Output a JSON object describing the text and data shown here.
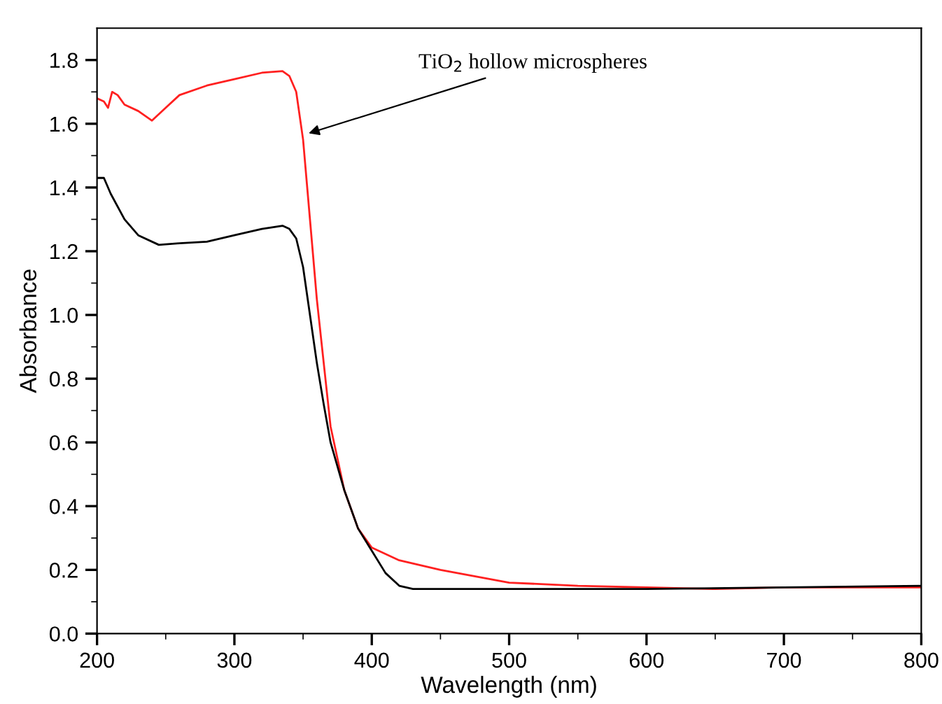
{
  "chart_data": {
    "type": "line",
    "xlabel": "Wavelength (nm)",
    "ylabel": "Absorbance",
    "xlim": [
      200,
      800
    ],
    "ylim": [
      0,
      1.9
    ],
    "xticks": [
      200,
      300,
      400,
      500,
      600,
      700,
      800
    ],
    "yticks": [
      {
        "value": 0,
        "label": "0.0"
      },
      {
        "value": 0.2,
        "label": "0.2"
      },
      {
        "value": 0.4,
        "label": "0.4"
      },
      {
        "value": 0.6,
        "label": "0.6"
      },
      {
        "value": 0.8,
        "label": "0.8"
      },
      {
        "value": 1,
        "label": "1.0"
      },
      {
        "value": 1.2,
        "label": "1.2"
      },
      {
        "value": 1.4,
        "label": "1.4"
      },
      {
        "value": 1.6,
        "label": "1.6"
      },
      {
        "value": 1.8,
        "label": "1.8"
      }
    ],
    "grid": false,
    "legend": false,
    "marker": "none",
    "line_style": "solid",
    "series": [
      {
        "color": "#ff2020",
        "x": [
          200,
          205,
          208,
          211,
          215,
          220,
          230,
          240,
          250,
          260,
          280,
          300,
          320,
          335,
          340,
          345,
          350,
          355,
          360,
          365,
          370,
          380,
          390,
          400,
          420,
          450,
          500,
          550,
          600,
          650,
          700,
          800
        ],
        "values": [
          1.68,
          1.67,
          1.65,
          1.7,
          1.69,
          1.66,
          1.64,
          1.61,
          1.65,
          1.69,
          1.72,
          1.74,
          1.76,
          1.765,
          1.75,
          1.7,
          1.55,
          1.3,
          1.05,
          0.85,
          0.65,
          0.45,
          0.33,
          0.27,
          0.23,
          0.2,
          0.16,
          0.15,
          0.145,
          0.14,
          0.145,
          0.145
        ]
      },
      {
        "color": "#000000",
        "x": [
          200,
          205,
          210,
          220,
          230,
          245,
          260,
          280,
          300,
          320,
          335,
          340,
          345,
          350,
          355,
          360,
          365,
          370,
          380,
          390,
          400,
          410,
          420,
          430,
          500,
          600,
          700,
          800
        ],
        "values": [
          1.43,
          1.43,
          1.38,
          1.3,
          1.25,
          1.22,
          1.225,
          1.23,
          1.25,
          1.27,
          1.28,
          1.27,
          1.24,
          1.15,
          1.0,
          0.85,
          0.72,
          0.6,
          0.45,
          0.33,
          0.26,
          0.19,
          0.15,
          0.14,
          0.14,
          0.14,
          0.145,
          0.15
        ]
      }
    ],
    "annotations": [
      {
        "text": "TiO$_{2}$ hollow microspheres",
        "x": 354,
        "y": 1.57
      }
    ]
  }
}
